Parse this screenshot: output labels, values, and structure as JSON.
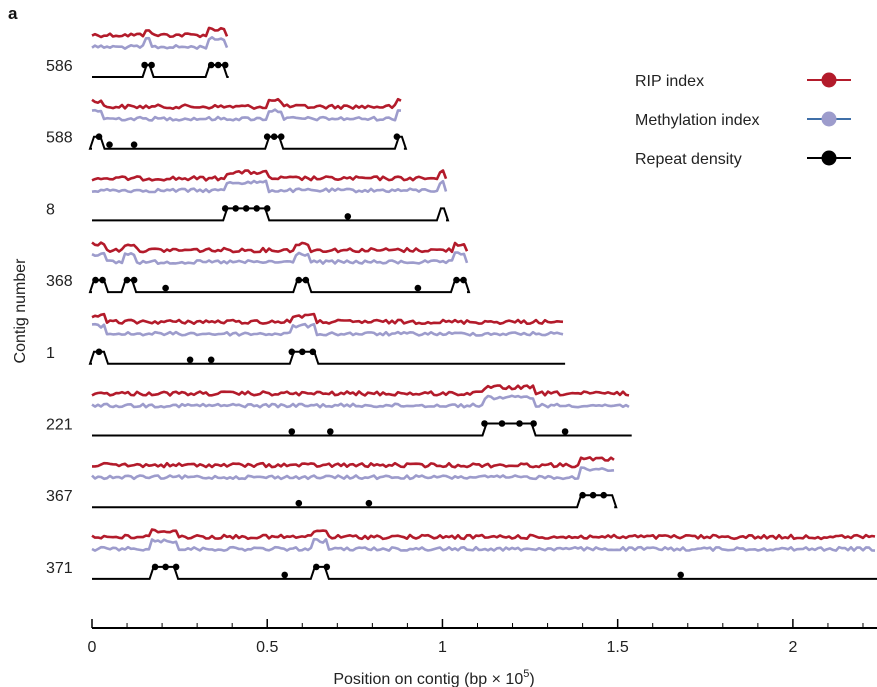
{
  "panel_letter": "a",
  "colors": {
    "rip": "#b31b2b",
    "methylation": "#9d9ccc",
    "methylation_legend_line": "#3f6fa8",
    "repeat": "#000000"
  },
  "chart_data": {
    "type": "line",
    "panel": "a",
    "ylabel": "Contig number",
    "xlabel_prefix": "Position on contig (bp × 10",
    "xlabel_exp": "5",
    "xlabel_suffix": ")",
    "xlim": [
      0,
      2.24
    ],
    "xticks": [
      {
        "value": 0,
        "label": "0"
      },
      {
        "value": 0.5,
        "label": "0.5"
      },
      {
        "value": 1,
        "label": "1"
      },
      {
        "value": 1.5,
        "label": "1.5"
      },
      {
        "value": 2,
        "label": "2"
      }
    ],
    "legend": {
      "placement": "top-right",
      "items": [
        {
          "label": "RIP index",
          "series": "rip"
        },
        {
          "label": "Methylation index",
          "series": "methylation"
        },
        {
          "label": "Repeat density",
          "series": "repeat"
        }
      ]
    },
    "contigs": [
      {
        "label": "586",
        "length": 0.39,
        "regions": [
          [
            0.15,
            0.17
          ],
          [
            0.33,
            0.38
          ]
        ],
        "repeat_points": [
          0.15,
          0.17,
          0.34,
          0.36,
          0.38
        ]
      },
      {
        "label": "588",
        "length": 0.89,
        "regions": [
          [
            0.0,
            0.03
          ],
          [
            0.5,
            0.54
          ],
          [
            0.87,
            0.89
          ]
        ],
        "repeat_points": [
          0.02,
          0.05,
          0.12,
          0.5,
          0.52,
          0.54,
          0.87
        ]
      },
      {
        "label": "8",
        "length": 1.01,
        "regions": [
          [
            0.38,
            0.5
          ],
          [
            0.99,
            1.01
          ]
        ],
        "repeat_points": [
          0.38,
          0.41,
          0.44,
          0.47,
          0.5,
          0.73
        ]
      },
      {
        "label": "368",
        "length": 1.07,
        "regions": [
          [
            0.0,
            0.04
          ],
          [
            0.09,
            0.12
          ],
          [
            0.58,
            0.62
          ],
          [
            1.03,
            1.07
          ]
        ],
        "repeat_points": [
          0.01,
          0.03,
          0.1,
          0.12,
          0.21,
          0.59,
          0.61,
          0.93,
          1.04,
          1.06
        ]
      },
      {
        "label": "1",
        "length": 1.35,
        "regions": [
          [
            0.0,
            0.04
          ],
          [
            0.57,
            0.64
          ]
        ],
        "repeat_points": [
          0.02,
          0.28,
          0.34,
          0.57,
          0.6,
          0.63
        ]
      },
      {
        "label": "221",
        "length": 1.54,
        "regions": [
          [
            1.12,
            1.26
          ]
        ],
        "repeat_points": [
          0.57,
          0.68,
          1.12,
          1.17,
          1.22,
          1.26,
          1.35
        ]
      },
      {
        "label": "367",
        "length": 1.49,
        "regions": [
          [
            1.39,
            1.49
          ]
        ],
        "repeat_points": [
          0.59,
          0.79,
          1.4,
          1.43,
          1.46
        ]
      },
      {
        "label": "371",
        "length": 2.24,
        "regions": [
          [
            0.17,
            0.24
          ],
          [
            0.63,
            0.67
          ]
        ],
        "repeat_points": [
          0.18,
          0.21,
          0.24,
          0.55,
          0.64,
          0.67,
          1.68
        ]
      }
    ]
  }
}
